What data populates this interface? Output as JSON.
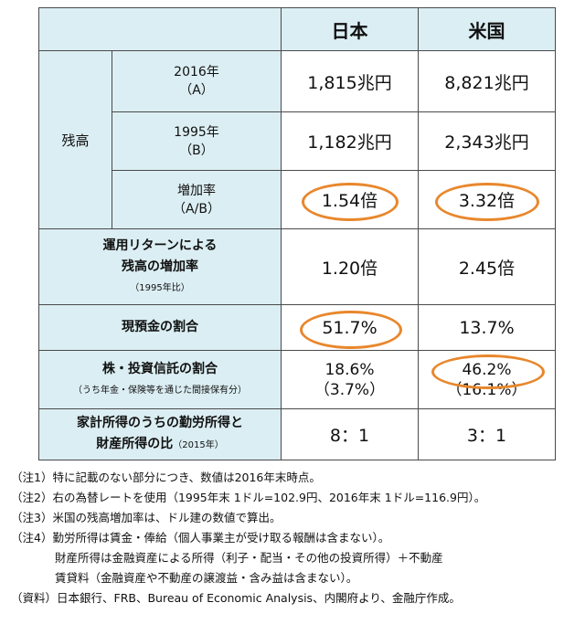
{
  "header": {
    "japan": "日本",
    "usa": "米国"
  },
  "balance": {
    "group_label": "残高",
    "rows": [
      {
        "label_top": "2016年",
        "label_bottom": "（A）",
        "japan": "1,815兆円",
        "usa": "8,821兆円"
      },
      {
        "label_top": "1995年",
        "label_bottom": "（B）",
        "japan": "1,182兆円",
        "usa": "2,343兆円"
      },
      {
        "label_top": "増加率",
        "label_bottom": "（A/B）",
        "japan": "1.54倍",
        "usa": "3.32倍"
      }
    ]
  },
  "return_row": {
    "label_1": "運用リターンによる",
    "label_2": "残高の増加率",
    "label_3": "（1995年比）",
    "japan": "1.20倍",
    "usa": "2.45倍"
  },
  "cash_row": {
    "label": "現預金の割合",
    "japan": "51.7%",
    "usa": "13.7%"
  },
  "stock_row": {
    "label": "株・投資信託の割合",
    "sublabel": "（うち年金・保険等を通じた間接保有分）",
    "japan": "18.6%",
    "japan_sub": "（3.7%）",
    "usa": "46.2%",
    "usa_sub": "（16.1%）"
  },
  "income_row": {
    "label_1": "家計所得のうちの勤労所得と",
    "label_2": "財産所得の比",
    "label_year": "（2015年）",
    "japan": "8：1",
    "usa": "3：1"
  },
  "notes": [
    "（注1）特に記載のない部分につき、数値は2016年末時点。",
    "（注2）右の為替レートを使用（1995年末 1ドル=102.9円、2016年末 1ドル=116.9円）。",
    "（注3）米国の残高増加率は、ドル建の数値で算出。",
    "（注4）勤労所得は賃金・俸給（個人事業主が受け取る報酬は含まない）。",
    "財産所得は金融資産による所得（利子・配当・その他の投資所得）＋不動産",
    "賃貸料（金融資産や不動産の譲渡益・含み益は含まない）。",
    "（資料）日本銀行、FRB、Bureau of Economic Analysis、内閣府より、金融庁作成。"
  ]
}
